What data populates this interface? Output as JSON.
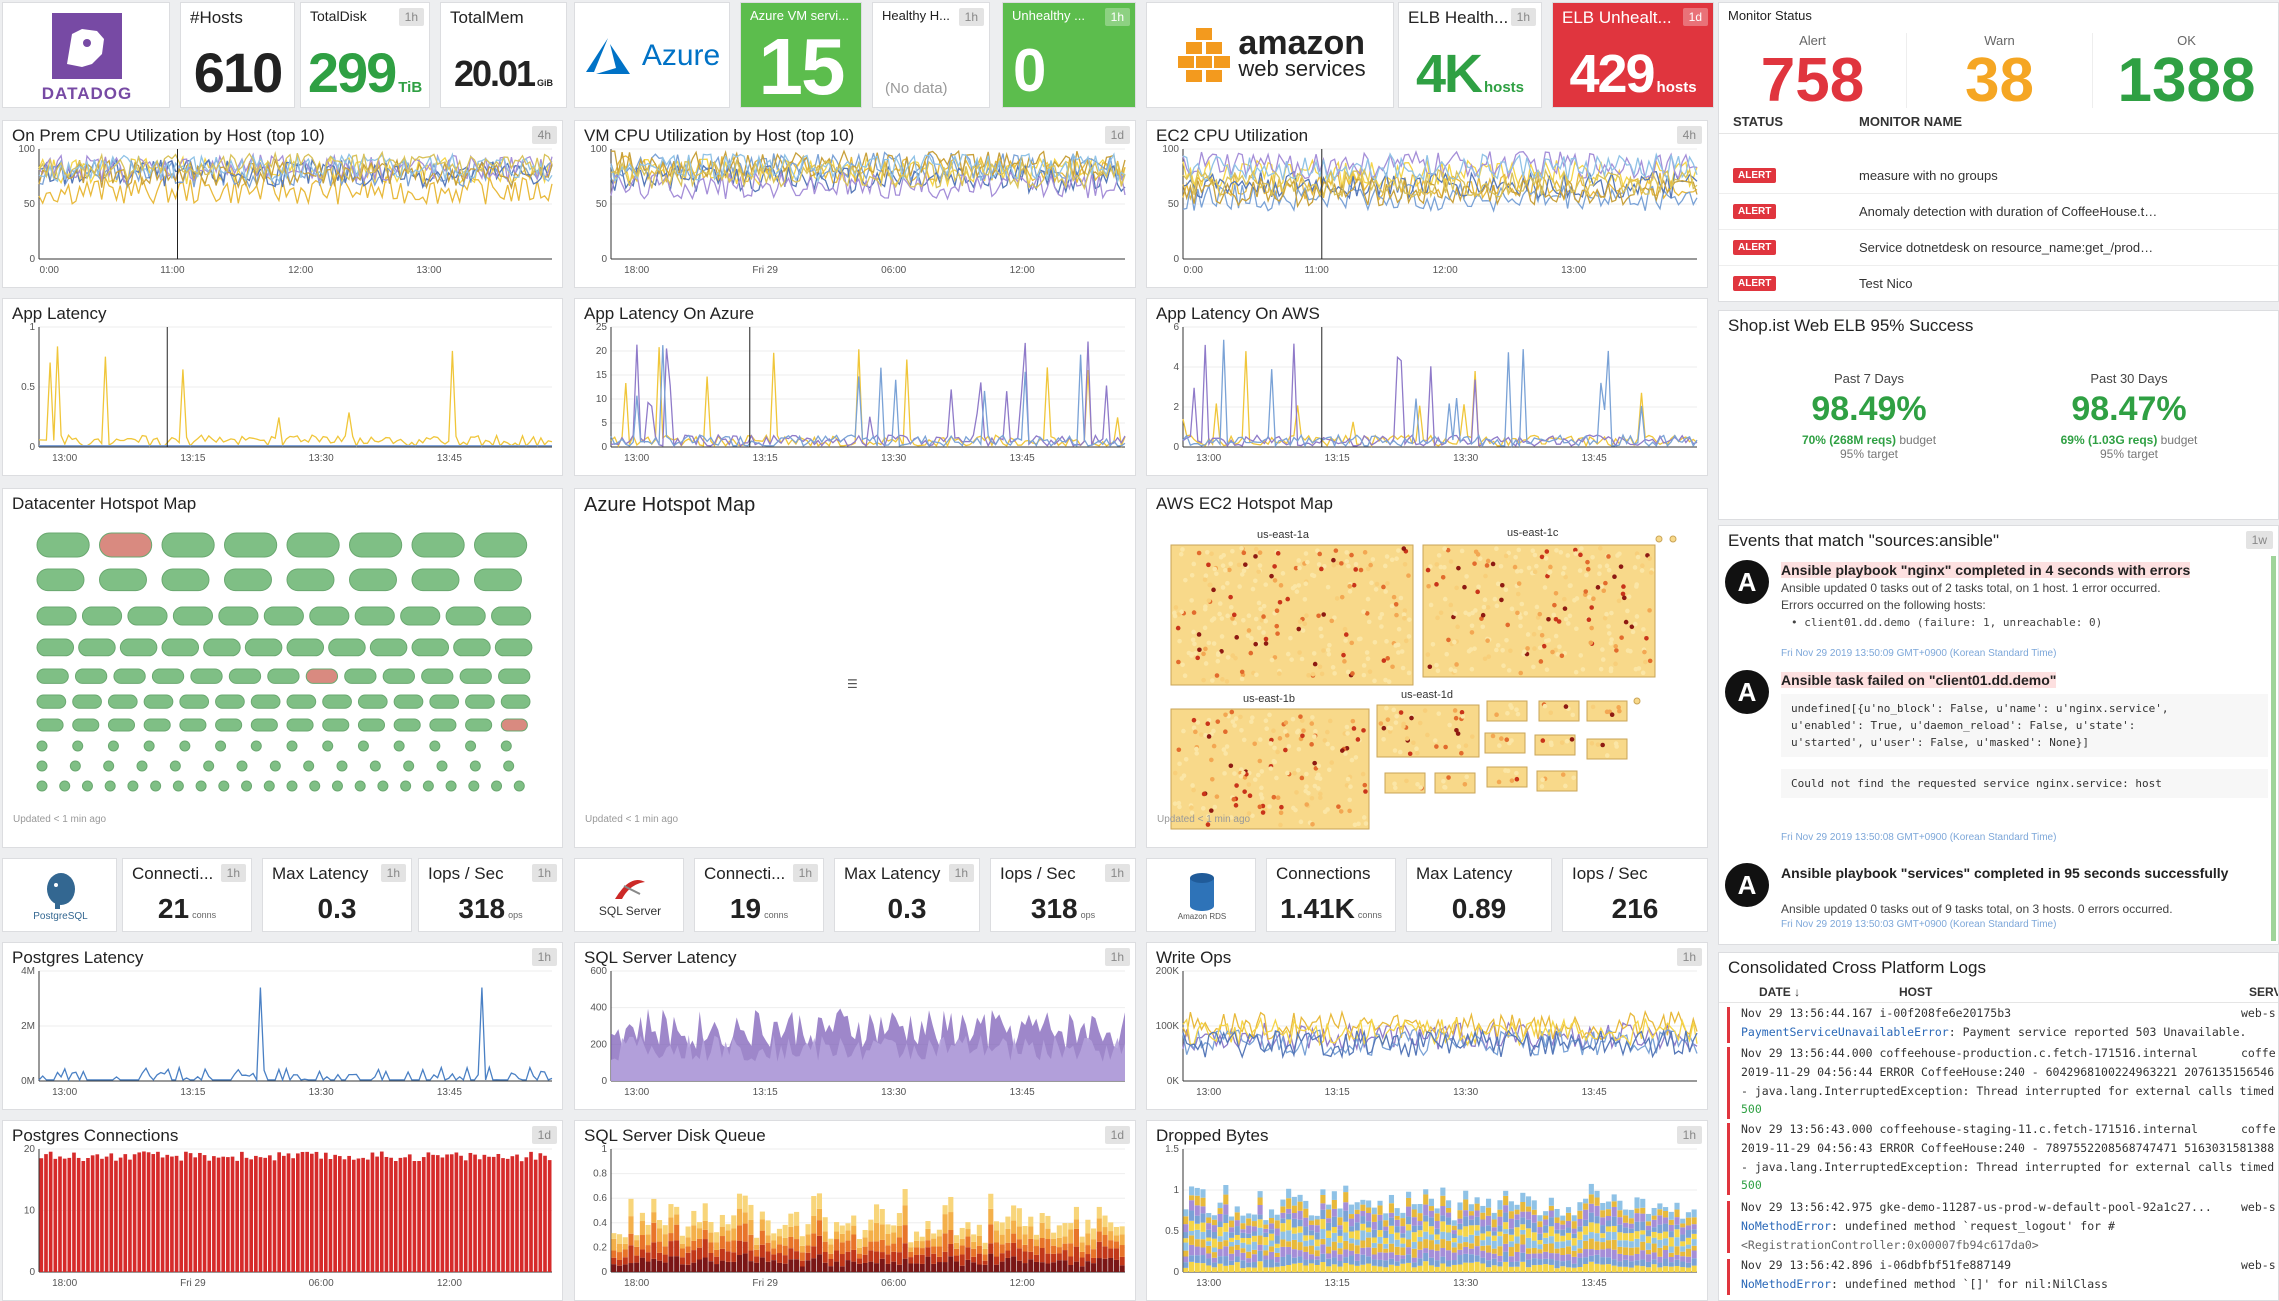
{
  "colors": {
    "green": "#2fa043",
    "red": "#e0353e",
    "orange": "#f5a623",
    "purple": "#774aa4",
    "azure": "#0072c6"
  },
  "top": {
    "hosts": {
      "title": "#Hosts",
      "value": "610"
    },
    "disk": {
      "title": "TotalDisk",
      "badge": "1h",
      "value": "299",
      "unit": "TiB"
    },
    "mem": {
      "title": "TotalMem",
      "value": "20.01",
      "unit": "GiB"
    },
    "azure_logo": "Azure",
    "vm": {
      "title": "Azure VM servi...",
      "value": "15"
    },
    "healthy": {
      "title": "Healthy H...",
      "badge": "1h",
      "value": "(No data)"
    },
    "unhealthy": {
      "title": "Unhealthy ...",
      "badge": "1h",
      "value": "0"
    },
    "aws_logo": {
      "line1": "amazon",
      "line2": "web services"
    },
    "elb_health": {
      "title": "ELB Health...",
      "badge": "1h",
      "value": "4K",
      "unit": "hosts"
    },
    "elb_unhealth": {
      "title": "ELB Unhealt...",
      "badge": "1d",
      "value": "429",
      "unit": "hosts"
    },
    "datadog_logo": "DATADOG"
  },
  "monitor": {
    "title": "Monitor Status",
    "alert_label": "Alert",
    "warn_label": "Warn",
    "ok_label": "OK",
    "alert": "758",
    "warn": "38",
    "ok": "1388",
    "col_status": "STATUS",
    "col_name": "MONITOR NAME",
    "rows": [
      {
        "status": "ALERT",
        "name": "measure with no groups"
      },
      {
        "status": "ALERT",
        "name": "Anomaly detection with duration of CoffeeHouse.traceValidateUs..."
      },
      {
        "status": "ALERT",
        "name": "Service dotnetdesk on resource_name:get_/product has an abnor..."
      },
      {
        "status": "ALERT",
        "name": "Test Nico"
      }
    ]
  },
  "slo": {
    "title": "Shop.ist Web ELB 95% Success",
    "a": {
      "period": "Past 7 Days",
      "value": "98.49%",
      "budget_b": "70% (268M reqs)",
      "budget": "budget",
      "target": "95% target"
    },
    "b": {
      "period": "Past 30 Days",
      "value": "98.47%",
      "budget_b": "69% (1.03G reqs)",
      "budget": "budget",
      "target": "95% target"
    }
  },
  "events": {
    "title": "Events that match \"sources:ansible\"",
    "badge": "1w",
    "e1": {
      "title": "Ansible playbook \"nginx\" completed in 4 seconds with errors",
      "l1": "Ansible updated 0 tasks out of 2 tasks total, on 1 host. 1 error occurred.",
      "l2": "Errors occurred on the following hosts:",
      "l3": "client01.dd.demo (failure: 1, unreachable: 0)",
      "date": "Fri Nov 29 2019 13:50:09 GMT+0900 (Korean Standard Time)"
    },
    "e2": {
      "title": "Ansible task failed on \"client01.dd.demo\"",
      "code": "undefined[{u'no_block': False, u'name': u'nginx.service',\nu'enabled': True, u'daemon_reload': False, u'state':\nu'started', u'user': False, u'masked': None}]",
      "code2": "Could not find the requested service nginx.service: host",
      "date": "Fri Nov 29 2019 13:50:08 GMT+0900 (Korean Standard Time)"
    },
    "e3": {
      "title": "Ansible playbook \"services\" completed in 95 seconds successfully",
      "l1": "Ansible updated 0 tasks out of 9 tasks total, on 3 hosts. 0 errors occurred.",
      "date": "Fri Nov 29 2019 13:50:03 GMT+0900 (Korean Standard Time)"
    }
  },
  "logs": {
    "title": "Consolidated Cross Platform Logs",
    "col_date": "DATE ↓",
    "col_host": "HOST",
    "col_serv": "SERV",
    "rows": [
      {
        "date": "Nov 29 13:56:44.167",
        "host": "i-00f208fe6e20175b3",
        "serv": "web-s",
        "msg_err": "PaymentServiceUnavailableError",
        "msg": ": Payment service reported 503 Unavailable."
      },
      {
        "date": "Nov 29 13:56:44.000",
        "host": "coffeehouse-production.c.fetch-171516.internal",
        "serv": "coffe",
        "msg2": "2019-11-29 04:56:44 ERROR CoffeeHouse:240 - 6042968100224963221 2076135156546",
        "msg3": "- java.lang.InterruptedException: Thread interrupted for external calls timed",
        "msg4": "500"
      },
      {
        "date": "Nov 29 13:56:43.000",
        "host": "coffeehouse-staging-11.c.fetch-171516.internal",
        "serv": "coffe",
        "msg2": "2019-11-29 04:56:43 ERROR CoffeeHouse:240 - 7897552208568747471 5163031581388",
        "msg3": "- java.lang.InterruptedException: Thread interrupted for external calls timed",
        "msg4": "500"
      },
      {
        "date": "Nov 29 13:56:42.975",
        "host": "gke-demo-11287-us-prod-w-default-pool-92a1c27...",
        "serv": "web-s",
        "msg_err": "NoMethodError",
        "msg": ": undefined method `request_logout' for #",
        "msg5": "<RegistrationController:0x00007fb94c617da0>"
      },
      {
        "date": "Nov 29 13:56:42.896",
        "host": "i-06dbfbf51fe887149",
        "serv": "web-s",
        "msg_err": "NoMethodError",
        "msg": ": undefined method `[]' for nil:NilClass"
      }
    ]
  },
  "charts": {
    "onprem": {
      "title": "On Prem CPU Utilization by Host (top 10)",
      "badge": "4h"
    },
    "vmcpu": {
      "title": "VM CPU Utilization by Host (top 10)",
      "badge": "1d"
    },
    "ec2": {
      "title": "EC2 CPU Utilization",
      "badge": "4h"
    },
    "applat": {
      "title": "App Latency"
    },
    "applataz": {
      "title": "App Latency On Azure"
    },
    "applataws": {
      "title": "App Latency On AWS"
    },
    "pglat": {
      "title": "Postgres Latency",
      "badge": "1h"
    },
    "sqllat": {
      "title": "SQL Server Latency",
      "badge": "1h"
    },
    "writeops": {
      "title": "Write Ops",
      "badge": "1h"
    },
    "pgconn": {
      "title": "Postgres Connections",
      "badge": "1d"
    },
    "sqlq": {
      "title": "SQL Server Disk Queue",
      "badge": "1d"
    },
    "dropped": {
      "title": "Dropped Bytes",
      "badge": "1h"
    }
  },
  "chart_data": [
    {
      "type": "line",
      "id": "onprem",
      "x": [
        "0:00",
        "11:00",
        "12:00",
        "13:00"
      ],
      "ylim": [
        0,
        100
      ],
      "yticks": [
        0,
        50,
        100
      ]
    },
    {
      "type": "line",
      "id": "vmcpu",
      "x": [
        "18:00",
        "Fri 29",
        "06:00",
        "12:00"
      ],
      "ylim": [
        0,
        100
      ],
      "yticks": [
        0,
        50,
        100
      ]
    },
    {
      "type": "line",
      "id": "ec2",
      "x": [
        "0:00",
        "11:00",
        "12:00",
        "13:00"
      ],
      "ylim": [
        0,
        100
      ],
      "yticks": [
        0,
        50,
        100
      ]
    },
    {
      "type": "line",
      "id": "applat",
      "x": [
        "13:00",
        "13:15",
        "13:30",
        "13:45"
      ],
      "ylim": [
        0,
        1
      ],
      "yticks": [
        0,
        0.5,
        1
      ]
    },
    {
      "type": "line",
      "id": "applataz",
      "x": [
        "13:00",
        "13:15",
        "13:30",
        "13:45"
      ],
      "ylim": [
        0,
        25
      ],
      "yticks": [
        0,
        5,
        10,
        15,
        20,
        25
      ]
    },
    {
      "type": "line",
      "id": "applataws",
      "x": [
        "13:00",
        "13:15",
        "13:30",
        "13:45"
      ],
      "ylim": [
        0,
        6
      ],
      "yticks": [
        0,
        2,
        4,
        6
      ]
    },
    {
      "type": "line",
      "id": "pglat",
      "x": [
        "13:00",
        "13:15",
        "13:30",
        "13:45"
      ],
      "yticks": [
        "0M",
        "2M",
        "4M"
      ]
    },
    {
      "type": "area",
      "id": "sqllat",
      "x": [
        "13:00",
        "13:15",
        "13:30",
        "13:45"
      ],
      "ylim": [
        0,
        600
      ],
      "yticks": [
        0,
        200,
        400,
        600
      ]
    },
    {
      "type": "line",
      "id": "writeops",
      "x": [
        "13:00",
        "13:15",
        "13:30",
        "13:45"
      ],
      "yticks": [
        "0K",
        "100K",
        "200K"
      ]
    },
    {
      "type": "bar",
      "id": "pgconn",
      "x": [
        "18:00",
        "Fri 29",
        "06:00",
        "12:00"
      ],
      "ylim": [
        0,
        20
      ],
      "yticks": [
        0,
        10,
        20
      ]
    },
    {
      "type": "bar",
      "id": "sqlq",
      "x": [
        "18:00",
        "Fri 29",
        "06:00",
        "12:00"
      ],
      "ylim": [
        0,
        1
      ],
      "yticks": [
        0,
        0.2,
        0.4,
        0.6,
        0.8,
        1
      ]
    },
    {
      "type": "bar",
      "id": "dropped",
      "x": [
        "13:00",
        "13:15",
        "13:30",
        "13:45"
      ],
      "ylim": [
        0,
        1.5
      ],
      "yticks": [
        0,
        0.5,
        1,
        1.5
      ]
    }
  ],
  "hostmaps": {
    "dc": {
      "title": "Datacenter Hotspot Map",
      "updated": "Updated < 1 min ago"
    },
    "az": {
      "title": "Azure Hotspot Map",
      "updated": "Updated < 1 min ago"
    },
    "aws": {
      "title": "AWS EC2 Hotspot Map",
      "updated": "Updated < 1 min ago",
      "groups": [
        "us-east-1a",
        "us-east-1c",
        "us-east-1b",
        "us-east-1d"
      ]
    }
  },
  "db": {
    "pg": {
      "logo": "PostgreSQL",
      "c": {
        "title": "Connecti...",
        "badge": "1h",
        "value": "21",
        "unit": "conns"
      },
      "l": {
        "title": "Max Latency",
        "badge": "1h",
        "value": "0.3"
      },
      "i": {
        "title": "Iops / Sec",
        "badge": "1h",
        "value": "318",
        "unit": "ops"
      }
    },
    "sql": {
      "logo": "SQL Server",
      "c": {
        "title": "Connecti...",
        "badge": "1h",
        "value": "19",
        "unit": "conns"
      },
      "l": {
        "title": "Max Latency",
        "badge": "1h",
        "value": "0.3"
      },
      "i": {
        "title": "Iops / Sec",
        "badge": "1h",
        "value": "318",
        "unit": "ops"
      }
    },
    "rds": {
      "logo": "Amazon RDS",
      "c": {
        "title": "Connections",
        "value": "1.41K",
        "unit": "conns"
      },
      "l": {
        "title": "Max Latency",
        "value": "0.89"
      },
      "i": {
        "title": "Iops / Sec",
        "value": "216"
      }
    }
  }
}
